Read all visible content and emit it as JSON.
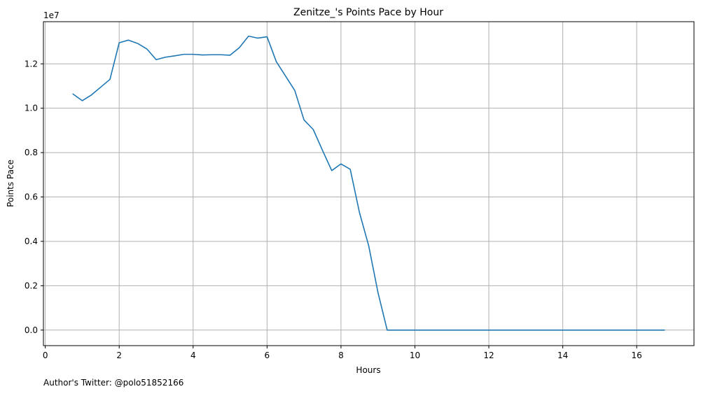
{
  "chart_data": {
    "type": "line",
    "title": "Zenitze_'s Points Pace by Hour",
    "xlabel": "Hours",
    "ylabel": "Points Pace",
    "y_scale_label": "1e7",
    "xlim": [
      -0.05,
      17.55
    ],
    "ylim": [
      -0.07,
      1.39
    ],
    "grid": true,
    "x_ticks": [
      0,
      2,
      4,
      6,
      8,
      10,
      12,
      14,
      16
    ],
    "x_tick_labels": [
      "0",
      "2",
      "4",
      "6",
      "8",
      "10",
      "12",
      "14",
      "16"
    ],
    "y_ticks": [
      0.0,
      0.2,
      0.4,
      0.6,
      0.8,
      1.0,
      1.2
    ],
    "y_tick_labels": [
      "0.0",
      "0.2",
      "0.4",
      "0.6",
      "0.8",
      "1.0",
      "1.2"
    ],
    "series": [
      {
        "color": "#1f77b4",
        "x": [
          0.75,
          1.0,
          1.25,
          1.5,
          1.75,
          2.0,
          2.25,
          2.5,
          2.75,
          3.0,
          3.25,
          3.5,
          3.75,
          4.0,
          4.25,
          4.5,
          4.75,
          5.0,
          5.25,
          5.5,
          5.75,
          6.0,
          6.25,
          6.5,
          6.75,
          7.0,
          7.25,
          7.5,
          7.75,
          8.0,
          8.25,
          8.5,
          8.75,
          9.0,
          9.25,
          9.5,
          9.75,
          10.0,
          10.25,
          10.5,
          10.75,
          11.0,
          11.25,
          11.5,
          11.75,
          12.0,
          12.25,
          12.5,
          12.75,
          13.0,
          13.25,
          13.5,
          13.75,
          14.0,
          14.25,
          14.5,
          14.75,
          15.0,
          15.25,
          15.5,
          15.75,
          16.0,
          16.25,
          16.5,
          16.75
        ],
        "values": [
          1.064,
          1.034,
          1.06,
          1.095,
          1.13,
          1.295,
          1.307,
          1.292,
          1.267,
          1.219,
          1.23,
          1.236,
          1.243,
          1.243,
          1.24,
          1.241,
          1.241,
          1.239,
          1.273,
          1.325,
          1.316,
          1.322,
          1.21,
          1.145,
          1.08,
          0.947,
          0.904,
          0.81,
          0.719,
          0.749,
          0.725,
          0.53,
          0.38,
          0.17,
          0.0,
          0.0,
          0.0,
          0.0,
          0.0,
          0.0,
          0.0,
          0.0,
          0.0,
          0.0,
          0.0,
          0.0,
          0.0,
          0.0,
          0.0,
          0.0,
          0.0,
          0.0,
          0.0,
          0.0,
          0.0,
          0.0,
          0.0,
          0.0,
          0.0,
          0.0,
          0.0,
          0.0,
          0.0,
          0.0,
          0.0
        ]
      }
    ]
  },
  "footer": {
    "note": "Author's Twitter: @polo51852166"
  },
  "colors": {
    "line": "#1f77b4",
    "grid": "#b0b0b0",
    "axis": "#000000"
  }
}
